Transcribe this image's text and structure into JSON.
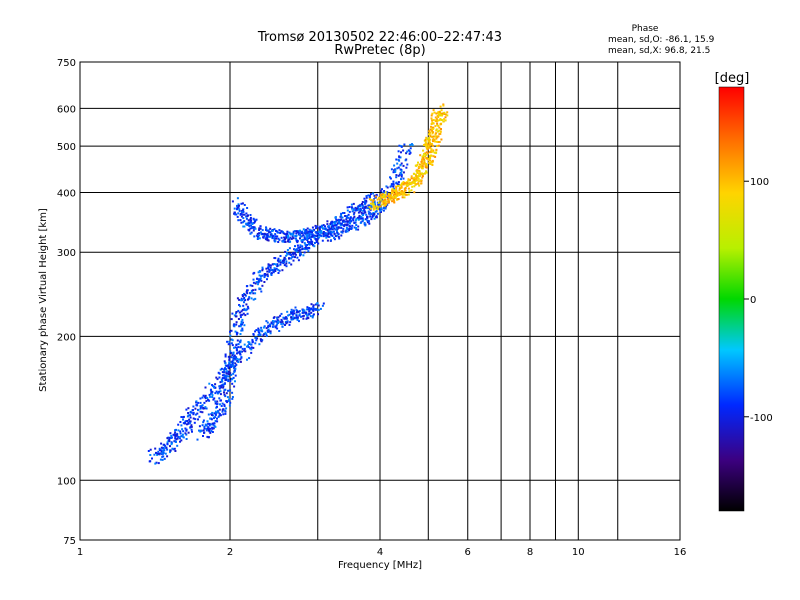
{
  "chart_data": {
    "type": "scatter",
    "title": "Tromsø 20130502 22:46:00–22:47:43",
    "subtitle": "RwPretec (8p)",
    "xlabel": "Frequency [MHz]",
    "ylabel": "Stationary phase Virtual Height [km]",
    "x_scale": "log",
    "y_scale": "log",
    "xlim": [
      1,
      16
    ],
    "ylim": [
      75,
      750
    ],
    "x_ticks": [
      1,
      2,
      4,
      6,
      8,
      10,
      16
    ],
    "x_tick_labels": [
      "1",
      "2",
      "4",
      "6",
      "8",
      "10",
      "16"
    ],
    "x_minor_grid": [
      3,
      5,
      7,
      9,
      12
    ],
    "y_ticks": [
      75,
      100,
      200,
      300,
      400,
      500,
      600,
      750
    ],
    "y_tick_labels": [
      "75",
      "100",
      "200",
      "300",
      "400",
      "500",
      "600",
      "750"
    ],
    "grid": true,
    "phase_stats": {
      "title": "Phase",
      "line_o": "mean, sd,O: -86.1, 15.9",
      "line_x": "mean, sd,X:  96.8, 21.5"
    },
    "colorbar": {
      "label": "[deg]",
      "range": [
        -180,
        180
      ],
      "ticks": [
        100,
        0,
        -100
      ],
      "tick_labels": [
        "100",
        "0",
        "-100"
      ],
      "colormap": "rainbow"
    },
    "series": [
      {
        "mode": "O",
        "phase_mean": -86.1,
        "traces": [
          {
            "x": [
              1.75,
              1.85,
              1.95,
              2.0,
              2.05,
              2.15,
              2.3,
              2.5,
              2.7,
              2.9,
              3.2,
              3.5,
              3.8,
              4.0,
              4.3,
              4.5
            ],
            "y": [
              125,
              135,
              150,
              175,
              210,
              240,
              270,
              285,
              300,
              320,
              330,
              345,
              360,
              380,
              430,
              510
            ]
          },
          {
            "x": [
              2.05,
              2.15,
              2.3,
              2.5,
              2.7,
              2.9,
              3.1,
              3.3,
              3.6,
              3.9
            ],
            "y": [
              380,
              350,
              330,
              325,
              325,
              330,
              335,
              350,
              370,
              390
            ]
          },
          {
            "x": [
              1.4,
              1.5,
              1.6,
              1.7,
              1.85,
              2.0,
              2.2,
              2.4,
              2.6,
              2.8,
              3.0
            ],
            "y": [
              112,
              118,
              128,
              140,
              155,
              175,
              195,
              210,
              220,
              225,
              230
            ]
          }
        ]
      },
      {
        "mode": "X",
        "phase_mean": 96.8,
        "traces": [
          {
            "x": [
              3.9,
              4.1,
              4.3,
              4.5,
              4.7,
              4.9,
              5.0,
              5.1,
              5.2,
              5.3
            ],
            "y": [
              380,
              390,
              400,
              410,
              430,
              460,
              490,
              520,
              560,
              600
            ]
          }
        ]
      }
    ]
  }
}
